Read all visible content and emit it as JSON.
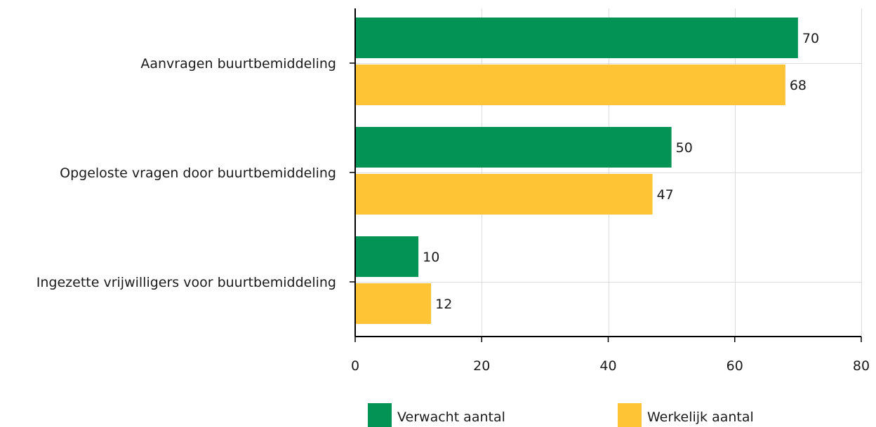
{
  "chart_data": {
    "type": "bar",
    "orientation": "horizontal",
    "categories": [
      "Aanvragen buurtbemiddeling",
      "Opgeloste vragen door buurtbemiddeling",
      "Ingezette vrijwilligers voor buurtbemiddeling"
    ],
    "series": [
      {
        "name": "Verwacht aantal",
        "color": "#039455",
        "values": [
          70,
          50,
          10
        ]
      },
      {
        "name": "Werkelijk aantal",
        "color": "#fec436",
        "values": [
          68,
          47,
          12
        ]
      }
    ],
    "xlim": [
      0,
      80
    ],
    "xticks": [
      0,
      20,
      40,
      60,
      80
    ],
    "grid": true,
    "legend_position": "bottom",
    "title": "",
    "xlabel": "",
    "ylabel": ""
  }
}
